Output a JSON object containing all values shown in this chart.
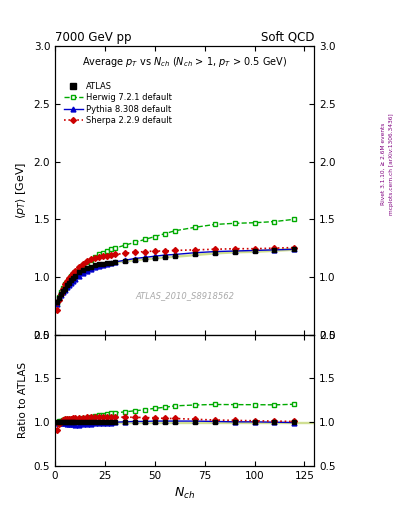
{
  "title_left": "7000 GeV pp",
  "title_right": "Soft QCD",
  "plot_title": "Average $p_T$ vs $N_{ch}$ ($N_{ch}$ > 1, $p_T$ > 0.5 GeV)",
  "ylabel_main": "$\\langle p_T \\rangle$ [GeV]",
  "ylabel_ratio": "Ratio to ATLAS",
  "xlabel": "$N_{ch}$",
  "right_label1": "mcplots.cern.ch [arXiv:1306.3436]",
  "right_label2": "Rivet 3.1.10, ≥ 2.6M events",
  "watermark": "ATLAS_2010_S8918562",
  "ylim_main": [
    0.5,
    3.0
  ],
  "ylim_ratio": [
    0.5,
    2.0
  ],
  "xlim": [
    0,
    130
  ],
  "atlas_x": [
    1,
    2,
    3,
    4,
    5,
    6,
    7,
    8,
    9,
    10,
    12,
    14,
    16,
    18,
    20,
    22,
    24,
    26,
    28,
    30,
    35,
    40,
    45,
    50,
    55,
    60,
    70,
    80,
    90,
    100,
    110,
    120
  ],
  "atlas_y": [
    0.78,
    0.82,
    0.855,
    0.88,
    0.9,
    0.93,
    0.95,
    0.97,
    0.99,
    1.01,
    1.04,
    1.06,
    1.075,
    1.09,
    1.1,
    1.11,
    1.115,
    1.12,
    1.125,
    1.13,
    1.14,
    1.15,
    1.16,
    1.165,
    1.175,
    1.18,
    1.195,
    1.21,
    1.22,
    1.225,
    1.235,
    1.245
  ],
  "atlas_yerr": [
    0.01,
    0.01,
    0.008,
    0.007,
    0.007,
    0.006,
    0.006,
    0.005,
    0.005,
    0.005,
    0.005,
    0.005,
    0.005,
    0.005,
    0.005,
    0.005,
    0.005,
    0.005,
    0.005,
    0.005,
    0.005,
    0.005,
    0.005,
    0.005,
    0.005,
    0.005,
    0.005,
    0.006,
    0.006,
    0.007,
    0.008,
    0.009
  ],
  "herwig_x": [
    1,
    2,
    3,
    4,
    5,
    6,
    7,
    8,
    9,
    10,
    12,
    14,
    16,
    18,
    20,
    22,
    24,
    26,
    28,
    30,
    35,
    40,
    45,
    50,
    55,
    60,
    70,
    80,
    90,
    100,
    110,
    120
  ],
  "herwig_y": [
    0.77,
    0.83,
    0.87,
    0.905,
    0.935,
    0.96,
    0.985,
    1.005,
    1.025,
    1.04,
    1.075,
    1.105,
    1.13,
    1.15,
    1.175,
    1.195,
    1.21,
    1.225,
    1.24,
    1.25,
    1.275,
    1.3,
    1.325,
    1.35,
    1.375,
    1.4,
    1.43,
    1.455,
    1.465,
    1.47,
    1.48,
    1.5
  ],
  "pythia_x": [
    1,
    2,
    3,
    4,
    5,
    6,
    7,
    8,
    9,
    10,
    12,
    14,
    16,
    18,
    20,
    22,
    24,
    26,
    28,
    30,
    35,
    40,
    45,
    50,
    55,
    60,
    70,
    80,
    90,
    100,
    110,
    120
  ],
  "pythia_y": [
    0.77,
    0.815,
    0.845,
    0.87,
    0.89,
    0.91,
    0.93,
    0.95,
    0.965,
    0.98,
    1.01,
    1.035,
    1.055,
    1.07,
    1.085,
    1.095,
    1.105,
    1.115,
    1.12,
    1.13,
    1.145,
    1.16,
    1.17,
    1.18,
    1.19,
    1.195,
    1.21,
    1.22,
    1.225,
    1.23,
    1.235,
    1.24
  ],
  "sherpa_x": [
    1,
    2,
    3,
    4,
    5,
    6,
    7,
    8,
    9,
    10,
    12,
    14,
    16,
    18,
    20,
    22,
    24,
    26,
    28,
    30,
    35,
    40,
    45,
    50,
    55,
    60,
    70,
    80,
    90,
    100,
    110,
    120
  ],
  "sherpa_y": [
    0.71,
    0.8,
    0.855,
    0.9,
    0.935,
    0.965,
    0.99,
    1.01,
    1.035,
    1.055,
    1.09,
    1.115,
    1.135,
    1.155,
    1.165,
    1.175,
    1.18,
    1.185,
    1.19,
    1.195,
    1.205,
    1.215,
    1.22,
    1.225,
    1.225,
    1.23,
    1.235,
    1.24,
    1.245,
    1.245,
    1.25,
    1.255
  ],
  "atlas_color": "#000000",
  "herwig_color": "#00aa00",
  "pythia_color": "#0000cc",
  "sherpa_color": "#cc0000",
  "atlas_band_color": "#ccdd88",
  "yticks_main": [
    0.5,
    1.0,
    1.5,
    2.0,
    2.5,
    3.0
  ],
  "yticks_ratio": [
    0.5,
    1.0,
    1.5,
    2.0
  ],
  "xticks": [
    0,
    25,
    50,
    75,
    100,
    125
  ]
}
